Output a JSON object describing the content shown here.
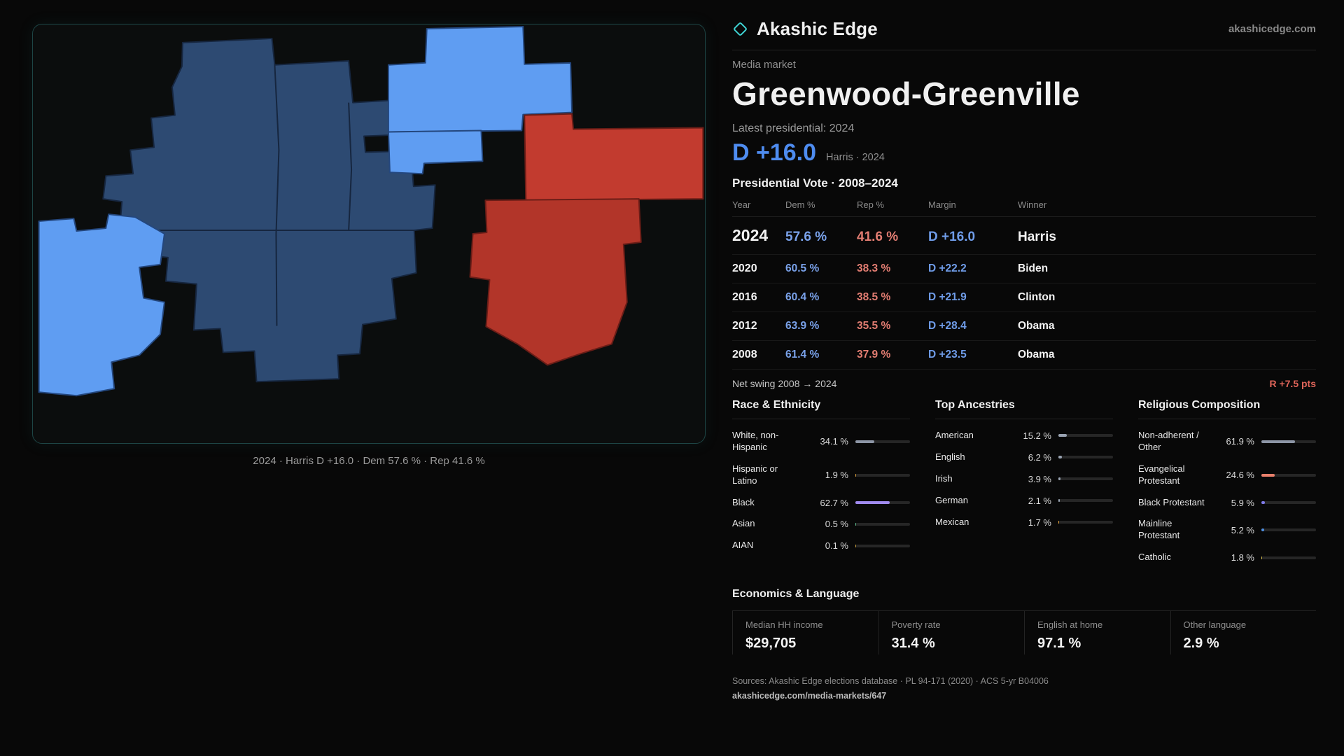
{
  "brand": {
    "name": "Akashic Edge",
    "site": "akashicedge.com"
  },
  "header": {
    "kicker": "Media market",
    "title": "Greenwood-Greenville",
    "latest": "Latest presidential: 2024",
    "margin_big": "D +16.0",
    "margin_sub": "Harris · 2024"
  },
  "map": {
    "caption": "2024 · Harris D +16.0 · Dem 57.6 % · Rep 41.6 %"
  },
  "vote_table": {
    "title": "Presidential Vote · 2008–2024",
    "headers": [
      "Year",
      "Dem %",
      "Rep %",
      "Margin",
      "Winner"
    ],
    "rows": [
      {
        "year": "2024",
        "dem": "57.6 %",
        "rep": "41.6 %",
        "margin": "D +16.0",
        "winner": "Harris"
      },
      {
        "year": "2020",
        "dem": "60.5 %",
        "rep": "38.3 %",
        "margin": "D +22.2",
        "winner": "Biden"
      },
      {
        "year": "2016",
        "dem": "60.4 %",
        "rep": "38.5 %",
        "margin": "D +21.9",
        "winner": "Clinton"
      },
      {
        "year": "2012",
        "dem": "63.9 %",
        "rep": "35.5 %",
        "margin": "D +28.4",
        "winner": "Obama"
      },
      {
        "year": "2008",
        "dem": "61.4 %",
        "rep": "37.9 %",
        "margin": "D +23.5",
        "winner": "Obama"
      }
    ],
    "swing_label": "Net swing 2008 → 2024",
    "swing_value": "R +7.5 pts"
  },
  "demographics": {
    "race": {
      "title": "Race & Ethnicity",
      "items": [
        {
          "label": "White, non-Hispanic",
          "value": "34.1 %",
          "pct": 34.1,
          "color": "#8d96a6"
        },
        {
          "label": "Hispanic or Latino",
          "value": "1.9 %",
          "pct": 1.9,
          "color": "#e0a23c"
        },
        {
          "label": "Black",
          "value": "62.7 %",
          "pct": 62.7,
          "color": "#a08aee"
        },
        {
          "label": "Asian",
          "value": "0.5 %",
          "pct": 0.5,
          "color": "#5fbf8e"
        },
        {
          "label": "AIAN",
          "value": "0.1 %",
          "pct": 0.1,
          "color": "#cba23f"
        }
      ]
    },
    "ancestries": {
      "title": "Top Ancestries",
      "items": [
        {
          "label": "American",
          "value": "15.2 %",
          "pct": 15.2,
          "color": "#99a3b2"
        },
        {
          "label": "English",
          "value": "6.2 %",
          "pct": 6.2,
          "color": "#99a3b2"
        },
        {
          "label": "Irish",
          "value": "3.9 %",
          "pct": 3.9,
          "color": "#99a3b2"
        },
        {
          "label": "German",
          "value": "2.1 %",
          "pct": 2.1,
          "color": "#99a3b2"
        },
        {
          "label": "Mexican",
          "value": "1.7 %",
          "pct": 1.7,
          "color": "#e0a23c"
        }
      ]
    },
    "religion": {
      "title": "Religious Composition",
      "items": [
        {
          "label": "Non-adherent / Other",
          "value": "61.9 %",
          "pct": 61.9,
          "color": "#8d96a6"
        },
        {
          "label": "Evangelical Protestant",
          "value": "24.6 %",
          "pct": 24.6,
          "color": "#e87f6b"
        },
        {
          "label": "Black Protestant",
          "value": "5.9 %",
          "pct": 5.9,
          "color": "#7f7ae8"
        },
        {
          "label": "Mainline Protestant",
          "value": "5.2 %",
          "pct": 5.2,
          "color": "#4f8fe0"
        },
        {
          "label": "Catholic",
          "value": "1.8 %",
          "pct": 1.8,
          "color": "#d9c04f"
        }
      ]
    }
  },
  "economics": {
    "title": "Economics & Language",
    "stats": [
      {
        "label": "Median HH income",
        "value": "$29,705"
      },
      {
        "label": "Poverty rate",
        "value": "31.4 %"
      },
      {
        "label": "English at home",
        "value": "97.1 %"
      },
      {
        "label": "Other language",
        "value": "2.9 %"
      }
    ]
  },
  "footer": {
    "sources": "Sources: Akashic Edge elections database · PL 94-171 (2020) · ACS 5-yr B04006",
    "link": "akashicedge.com/media-markets/647"
  },
  "colors": {
    "dem_blue": "#4e8cf0",
    "rep_red": "#e0655a",
    "map_navy": "#2d4a72",
    "map_light_blue": "#5f9df2",
    "map_red": "#b5362c",
    "panel_border": "#1d4545",
    "accent_teal": "#3fd4d4"
  },
  "chart_data": [
    {
      "type": "table",
      "title": "Presidential Vote · 2008–2024",
      "columns": [
        "Year",
        "Dem %",
        "Rep %",
        "Margin",
        "Winner"
      ],
      "rows": [
        [
          "2024",
          57.6,
          41.6,
          "D +16.0",
          "Harris"
        ],
        [
          "2020",
          60.5,
          38.3,
          "D +22.2",
          "Biden"
        ],
        [
          "2016",
          60.4,
          38.5,
          "D +21.9",
          "Clinton"
        ],
        [
          "2012",
          63.9,
          35.5,
          "D +28.4",
          "Obama"
        ],
        [
          "2008",
          61.4,
          37.9,
          "D +23.5",
          "Obama"
        ]
      ],
      "note": "Net swing 2008 → 2024: R +7.5 pts"
    },
    {
      "type": "bar",
      "title": "Race & Ethnicity",
      "categories": [
        "White, non-Hispanic",
        "Hispanic or Latino",
        "Black",
        "Asian",
        "AIAN"
      ],
      "values": [
        34.1,
        1.9,
        62.7,
        0.5,
        0.1
      ],
      "unit": "%",
      "xlim": [
        0,
        100
      ],
      "orientation": "horizontal"
    },
    {
      "type": "bar",
      "title": "Top Ancestries",
      "categories": [
        "American",
        "English",
        "Irish",
        "German",
        "Mexican"
      ],
      "values": [
        15.2,
        6.2,
        3.9,
        2.1,
        1.7
      ],
      "unit": "%",
      "xlim": [
        0,
        100
      ],
      "orientation": "horizontal"
    },
    {
      "type": "bar",
      "title": "Religious Composition",
      "categories": [
        "Non-adherent / Other",
        "Evangelical Protestant",
        "Black Protestant",
        "Mainline Protestant",
        "Catholic"
      ],
      "values": [
        61.9,
        24.6,
        5.9,
        5.2,
        1.8
      ],
      "unit": "%",
      "xlim": [
        0,
        100
      ],
      "orientation": "horizontal"
    }
  ]
}
